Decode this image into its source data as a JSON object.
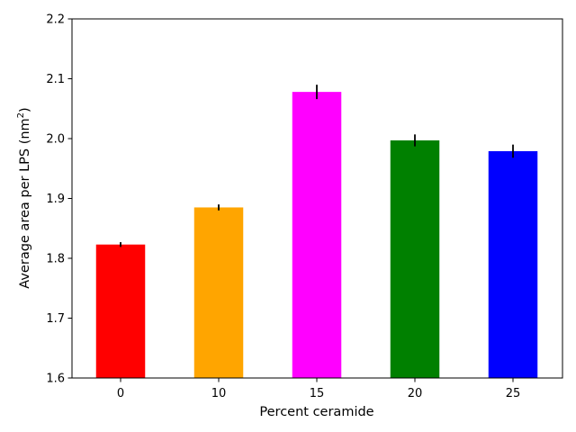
{
  "chart_data": {
    "type": "bar",
    "categories": [
      "0",
      "10",
      "15",
      "20",
      "25"
    ],
    "values": [
      1.823,
      1.885,
      2.078,
      1.997,
      1.979
    ],
    "errors": [
      0.004,
      0.005,
      0.012,
      0.01,
      0.011
    ],
    "colors": [
      "#ff0000",
      "#ffa500",
      "#ff00ff",
      "#008000",
      "#0000ff"
    ],
    "xlabel": "Percent ceramide",
    "ylabel_main": "Average area per LPS (nm",
    "ylabel_sup": "2",
    "ylabel_close": ")",
    "ylim": [
      1.6,
      2.2
    ],
    "yticks": [
      "1.6",
      "1.7",
      "1.8",
      "1.9",
      "2.0",
      "2.1",
      "2.2"
    ],
    "grid": false,
    "legend": "none"
  }
}
